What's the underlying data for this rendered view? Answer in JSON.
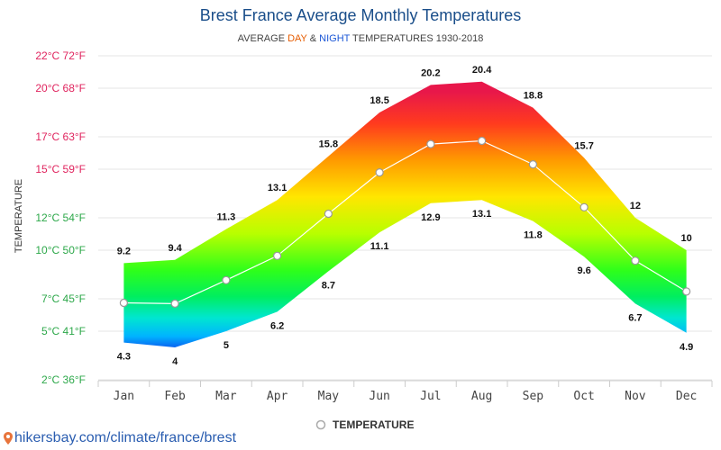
{
  "title": "Brest France Average Monthly Temperatures",
  "subtitle": {
    "prefix": "AVERAGE ",
    "day": "DAY",
    "amp": " & ",
    "night": "NIGHT",
    "suffix": " TEMPERATURES 1930-2018"
  },
  "footer": "hikersbay.com/climate/france/brest",
  "colors": {
    "title": "#1a4e8a",
    "day": "#e65c00",
    "night": "#1a56d6",
    "ytick_warm": "#e0245e",
    "ytick_cool": "#2da84a",
    "grid": "#e6e6e6",
    "line": "#ffffff"
  },
  "chart_data": {
    "type": "area",
    "title": "Brest France Average Monthly Temperatures",
    "ylabel": "TEMPERATURE",
    "xlabel": "",
    "categories": [
      "Jan",
      "Feb",
      "Mar",
      "Apr",
      "May",
      "Jun",
      "Jul",
      "Aug",
      "Sep",
      "Oct",
      "Nov",
      "Dec"
    ],
    "ylim": [
      2,
      22
    ],
    "yticks": [
      {
        "value": 2,
        "label": "2°C 36°F"
      },
      {
        "value": 5,
        "label": "5°C 41°F"
      },
      {
        "value": 7,
        "label": "7°C 45°F"
      },
      {
        "value": 10,
        "label": "10°C 50°F"
      },
      {
        "value": 12,
        "label": "12°C 54°F"
      },
      {
        "value": 15,
        "label": "15°C 59°F"
      },
      {
        "value": 17,
        "label": "17°C 63°F"
      },
      {
        "value": 20,
        "label": "20°C 68°F"
      },
      {
        "value": 22,
        "label": "22°C 72°F"
      }
    ],
    "day_values": [
      9.2,
      9.4,
      11.3,
      13.1,
      15.8,
      18.5,
      20.2,
      20.4,
      18.8,
      15.7,
      12,
      10
    ],
    "night_values": [
      4.3,
      4,
      5,
      6.2,
      8.7,
      11.1,
      12.9,
      13.1,
      11.8,
      9.6,
      6.7,
      4.9
    ],
    "series": [
      {
        "name": "TEMPERATURE",
        "values": [
          6.75,
          6.7,
          8.15,
          9.65,
          12.25,
          14.8,
          16.55,
          16.75,
          15.3,
          12.65,
          9.35,
          7.45
        ]
      }
    ],
    "grid": true,
    "legend": "bottom-center"
  }
}
